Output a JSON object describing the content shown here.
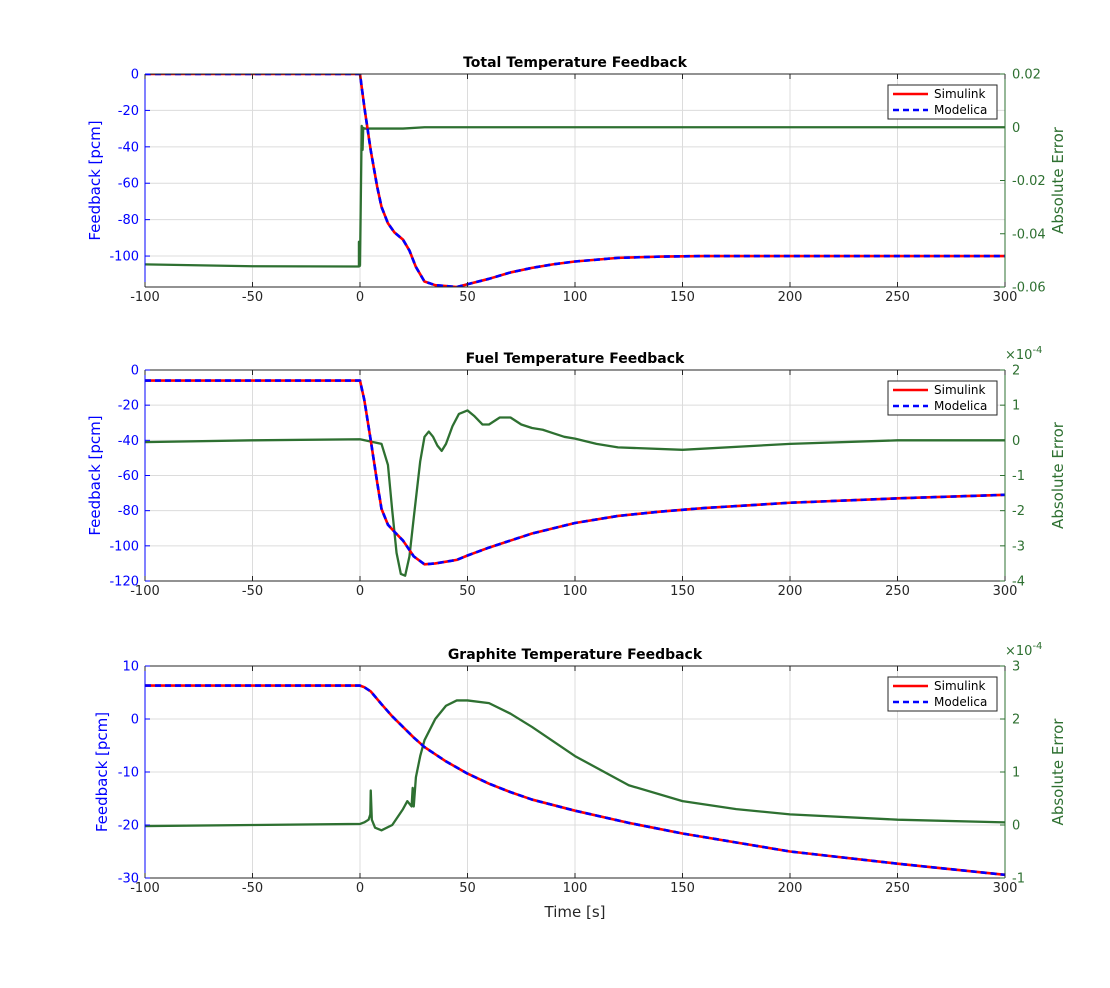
{
  "colors": {
    "simulink": "#ff0000",
    "modelica": "#0000ff",
    "error": "#2e7031",
    "left_axis": "#0000ff",
    "right_axis": "#2e7031",
    "grid": "#dcdcdc",
    "tick_text": "#262626"
  },
  "chart_data": [
    {
      "type": "line",
      "title": "Total Temperature Feedback",
      "xlabel": "",
      "ylabel": "Feedback [pcm]",
      "ylabel_right": "Absolute Error",
      "right_exponent": "",
      "xlim": [
        -100,
        300
      ],
      "ylim": [
        -117,
        0
      ],
      "ylim_right": [
        -0.06,
        0.02
      ],
      "xticks": [
        -100,
        -50,
        0,
        50,
        100,
        150,
        200,
        250,
        300
      ],
      "yticks": [
        -100,
        -80,
        -60,
        -40,
        -20,
        0
      ],
      "yticks_right": [
        -0.06,
        -0.04,
        -0.02,
        0,
        0.02
      ],
      "ytick_labels_right": [
        "-0.06",
        "-0.04",
        "-0.02",
        "0",
        "0.02"
      ],
      "grid": true,
      "legend": {
        "position": "top-right",
        "entries": [
          "Simulink",
          "Modelica"
        ]
      },
      "series": [
        {
          "name": "Simulink",
          "axis": "left",
          "style": "solid",
          "x": [
            -100,
            0,
            2,
            5,
            8,
            10,
            13,
            16,
            20,
            23,
            26,
            30,
            35,
            40,
            45,
            50,
            60,
            70,
            80,
            90,
            100,
            120,
            140,
            160,
            180,
            200,
            250,
            300
          ],
          "y": [
            0,
            0,
            -18,
            -42,
            -62,
            -73,
            -82,
            -87,
            -91,
            -97,
            -106,
            -114,
            -116,
            -116.5,
            -117,
            -115.5,
            -112.5,
            -109,
            -106.5,
            -104.5,
            -103,
            -101,
            -100.3,
            -100,
            -100,
            -100,
            -100,
            -100
          ]
        },
        {
          "name": "Modelica",
          "axis": "left",
          "style": "dashed",
          "x": [
            -100,
            0,
            2,
            5,
            8,
            10,
            13,
            16,
            20,
            23,
            26,
            30,
            35,
            40,
            45,
            50,
            60,
            70,
            80,
            90,
            100,
            120,
            140,
            160,
            180,
            200,
            250,
            300
          ],
          "y": [
            0,
            0,
            -18,
            -42,
            -62,
            -73,
            -82,
            -87,
            -91,
            -97,
            -106,
            -114,
            -116,
            -116.5,
            -117,
            -115.5,
            -112.5,
            -109,
            -106.5,
            -104.5,
            -103,
            -101,
            -100.3,
            -100,
            -100,
            -100,
            -100,
            -100
          ]
        },
        {
          "name": "Absolute Error",
          "axis": "right",
          "style": "solid",
          "x": [
            -100,
            -50,
            -2,
            -0.5,
            -0.5,
            0,
            0.8,
            1.2,
            1.5,
            2,
            10,
            20,
            30,
            60,
            100,
            200,
            300
          ],
          "y": [
            -0.0515,
            -0.0522,
            -0.0523,
            -0.0523,
            -0.043,
            -0.052,
            0.0005,
            -0.0085,
            -0.0002,
            -0.0005,
            -0.0005,
            -0.0005,
            0,
            0,
            0,
            0,
            0
          ]
        }
      ]
    },
    {
      "type": "line",
      "title": "Fuel Temperature Feedback",
      "xlabel": "",
      "ylabel": "Feedback [pcm]",
      "ylabel_right": "Absolute Error",
      "right_exponent": "×10",
      "right_exponent_power": "-4",
      "xlim": [
        -100,
        300
      ],
      "ylim": [
        -120,
        0
      ],
      "ylim_right": [
        -4,
        2
      ],
      "xticks": [
        -100,
        -50,
        0,
        50,
        100,
        150,
        200,
        250,
        300
      ],
      "yticks": [
        -120,
        -100,
        -80,
        -60,
        -40,
        -20,
        0
      ],
      "yticks_right": [
        -4,
        -3,
        -2,
        -1,
        0,
        1,
        2
      ],
      "ytick_labels_right": [
        "-4",
        "-3",
        "-2",
        "-1",
        "0",
        "1",
        "2"
      ],
      "grid": true,
      "legend": {
        "position": "top-right",
        "entries": [
          "Simulink",
          "Modelica"
        ]
      },
      "series": [
        {
          "name": "Simulink",
          "axis": "left",
          "style": "solid",
          "x": [
            -100,
            0,
            2,
            5,
            8,
            10,
            13,
            16,
            20,
            25,
            30,
            35,
            40,
            45,
            50,
            60,
            70,
            80,
            90,
            100,
            120,
            140,
            160,
            180,
            200,
            250,
            300
          ],
          "y": [
            -6,
            -6,
            -17,
            -40,
            -64,
            -79,
            -88,
            -92,
            -97,
            -106,
            -110.5,
            -110,
            -109,
            -108,
            -105.5,
            -101,
            -97,
            -93,
            -90,
            -87,
            -83,
            -80.5,
            -78.5,
            -77,
            -75.5,
            -73,
            -71
          ]
        },
        {
          "name": "Modelica",
          "axis": "left",
          "style": "dashed",
          "x": [
            -100,
            0,
            2,
            5,
            8,
            10,
            13,
            16,
            20,
            25,
            30,
            35,
            40,
            45,
            50,
            60,
            70,
            80,
            90,
            100,
            120,
            140,
            160,
            180,
            200,
            250,
            300
          ],
          "y": [
            -6,
            -6,
            -17,
            -40,
            -64,
            -79,
            -88,
            -92,
            -97,
            -106,
            -110.5,
            -110,
            -109,
            -108,
            -105.5,
            -101,
            -97,
            -93,
            -90,
            -87,
            -83,
            -80.5,
            -78.5,
            -77,
            -75.5,
            -73,
            -71
          ]
        },
        {
          "name": "Absolute Error",
          "axis": "right",
          "style": "solid",
          "x": [
            -100,
            -50,
            0,
            10,
            13,
            15,
            17,
            19,
            21,
            23,
            25,
            28,
            30,
            32,
            34,
            36,
            38,
            40,
            43,
            46,
            50,
            53,
            57,
            60,
            65,
            70,
            75,
            80,
            85,
            90,
            95,
            100,
            110,
            120,
            150,
            200,
            250,
            300
          ],
          "y": [
            -0.05,
            0,
            0.03,
            -0.1,
            -0.7,
            -2.0,
            -3.2,
            -3.8,
            -3.85,
            -3.3,
            -2.2,
            -0.6,
            0.1,
            0.25,
            0.1,
            -0.15,
            -0.3,
            -0.1,
            0.4,
            0.75,
            0.85,
            0.7,
            0.45,
            0.45,
            0.65,
            0.65,
            0.45,
            0.35,
            0.3,
            0.2,
            0.1,
            0.05,
            -0.1,
            -0.2,
            -0.27,
            -0.1,
            0,
            0
          ]
        }
      ]
    },
    {
      "type": "line",
      "title": "Graphite Temperature Feedback",
      "xlabel": "Time [s]",
      "ylabel": "Feedback [pcm]",
      "ylabel_right": "Absolute Error",
      "right_exponent": "×10",
      "right_exponent_power": "-4",
      "xlim": [
        -100,
        300
      ],
      "ylim": [
        -30,
        10
      ],
      "ylim_right": [
        -1,
        3
      ],
      "xticks": [
        -100,
        -50,
        0,
        50,
        100,
        150,
        200,
        250,
        300
      ],
      "yticks": [
        -30,
        -20,
        -10,
        0,
        10
      ],
      "yticks_right": [
        -1,
        0,
        1,
        2,
        3
      ],
      "ytick_labels_right": [
        "-1",
        "0",
        "1",
        "2",
        "3"
      ],
      "grid": true,
      "legend": {
        "position": "top-right",
        "entries": [
          "Simulink",
          "Modelica"
        ]
      },
      "series": [
        {
          "name": "Simulink",
          "axis": "left",
          "style": "solid",
          "x": [
            -100,
            0,
            2,
            5,
            10,
            15,
            20,
            25,
            30,
            40,
            50,
            60,
            70,
            80,
            100,
            125,
            150,
            175,
            200,
            250,
            300
          ],
          "y": [
            6.3,
            6.3,
            6,
            5.2,
            2.8,
            0.5,
            -1.5,
            -3.5,
            -5.3,
            -8,
            -10.3,
            -12.2,
            -13.8,
            -15.2,
            -17.3,
            -19.6,
            -21.6,
            -23.3,
            -25,
            -27.3,
            -29.4
          ]
        },
        {
          "name": "Modelica",
          "axis": "left",
          "style": "dashed",
          "x": [
            -100,
            0,
            2,
            5,
            10,
            15,
            20,
            25,
            30,
            40,
            50,
            60,
            70,
            80,
            100,
            125,
            150,
            175,
            200,
            250,
            300
          ],
          "y": [
            6.3,
            6.3,
            6,
            5.2,
            2.8,
            0.5,
            -1.5,
            -3.5,
            -5.3,
            -8,
            -10.3,
            -12.2,
            -13.8,
            -15.2,
            -17.3,
            -19.6,
            -21.6,
            -23.3,
            -25,
            -27.3,
            -29.4
          ]
        },
        {
          "name": "Absolute Error",
          "axis": "right",
          "style": "solid",
          "x": [
            -100,
            -50,
            0,
            2,
            4,
            4.8,
            5,
            5.5,
            7,
            10,
            15,
            20,
            22,
            24,
            24.5,
            25,
            26,
            28,
            30,
            35,
            40,
            45,
            50,
            60,
            70,
            80,
            100,
            125,
            150,
            175,
            200,
            250,
            300
          ],
          "y": [
            -0.02,
            0,
            0.02,
            0.05,
            0.1,
            0.2,
            0.65,
            0.1,
            -0.05,
            -0.1,
            0,
            0.3,
            0.45,
            0.35,
            0.7,
            0.35,
            0.9,
            1.3,
            1.6,
            2.0,
            2.25,
            2.35,
            2.35,
            2.3,
            2.1,
            1.85,
            1.3,
            0.75,
            0.45,
            0.3,
            0.2,
            0.1,
            0.05
          ]
        }
      ]
    }
  ]
}
